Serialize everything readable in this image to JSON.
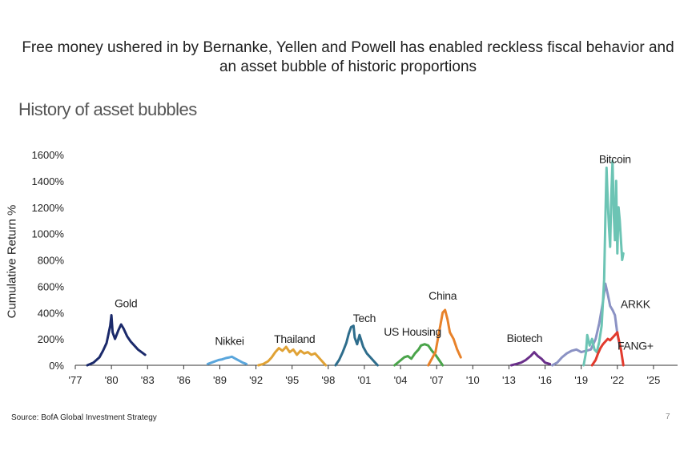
{
  "headline": "Free money ushered in by Bernanke, Yellen and Powell has enabled reckless fiscal behavior and an asset bubble of historic proportions",
  "footer": {
    "source": "Source: BofA Global Investment Strategy",
    "page": "7"
  },
  "chart_data": {
    "type": "line",
    "title": "History of asset bubbles",
    "xlabel": "",
    "ylabel": "Cumulative Return %",
    "xlim": [
      1977,
      2027
    ],
    "ylim": [
      0,
      1600
    ],
    "x_ticks": [
      1977,
      1980,
      1983,
      1986,
      1989,
      1992,
      1995,
      1998,
      2001,
      2004,
      2007,
      2010,
      2013,
      2016,
      2019,
      2022,
      2025
    ],
    "x_tick_labels": [
      "'77",
      "'80",
      "'83",
      "'86",
      "'89",
      "'92",
      "'95",
      "'98",
      "'01",
      "'04",
      "'07",
      "'10",
      "'13",
      "'16",
      "'19",
      "'22",
      "'25"
    ],
    "y_ticks": [
      0,
      200,
      400,
      600,
      800,
      1000,
      1200,
      1400,
      1600
    ],
    "y_tick_labels": [
      "0%",
      "200%",
      "400%",
      "600%",
      "800%",
      "1000%",
      "1200%",
      "1400%",
      "1600%"
    ],
    "series": [
      {
        "name": "Gold",
        "color": "#1b2a6b",
        "label_at": [
          1981.2,
          440
        ],
        "x": [
          1978.0,
          1978.5,
          1979.0,
          1979.3,
          1979.6,
          1979.9,
          1980.0,
          1980.1,
          1980.3,
          1980.6,
          1980.8,
          1981.0,
          1981.3,
          1981.6,
          1981.9,
          1982.2,
          1982.5,
          1982.8
        ],
        "y": [
          0,
          20,
          60,
          110,
          170,
          300,
          380,
          250,
          200,
          270,
          310,
          280,
          220,
          180,
          150,
          120,
          100,
          80
        ]
      },
      {
        "name": "Nikkei",
        "color": "#5aa6dc",
        "label_at": [
          1989.8,
          155
        ],
        "x": [
          1988.0,
          1988.3,
          1988.6,
          1988.9,
          1989.2,
          1989.5,
          1989.8,
          1990.0,
          1990.3,
          1990.6,
          1990.9,
          1991.2
        ],
        "y": [
          10,
          20,
          30,
          40,
          45,
          55,
          60,
          65,
          50,
          35,
          20,
          10
        ]
      },
      {
        "name": "Thailand",
        "color": "#e0a235",
        "label_at": [
          1995.2,
          170
        ],
        "x": [
          1992.2,
          1992.6,
          1993.0,
          1993.3,
          1993.6,
          1993.9,
          1994.2,
          1994.5,
          1994.8,
          1995.1,
          1995.4,
          1995.7,
          1996.0,
          1996.3,
          1996.6,
          1996.9,
          1997.2,
          1997.5,
          1997.8
        ],
        "y": [
          0,
          10,
          30,
          60,
          100,
          130,
          110,
          140,
          100,
          120,
          80,
          110,
          90,
          100,
          80,
          90,
          60,
          30,
          0
        ]
      },
      {
        "name": "Tech",
        "color": "#2e6d8c",
        "label_at": [
          2001.0,
          330
        ],
        "x": [
          1998.6,
          1998.9,
          1999.2,
          1999.5,
          1999.7,
          1999.9,
          2000.1,
          2000.2,
          2000.4,
          2000.6,
          2000.9,
          2001.2,
          2001.5,
          2001.8,
          2002.1
        ],
        "y": [
          0,
          40,
          100,
          170,
          240,
          290,
          300,
          210,
          160,
          230,
          140,
          90,
          60,
          30,
          0
        ]
      },
      {
        "name": "US Housing",
        "color": "#4aa44a",
        "label_at": [
          2005.0,
          225
        ],
        "x": [
          2003.5,
          2003.9,
          2004.3,
          2004.6,
          2004.9,
          2005.2,
          2005.5,
          2005.7,
          2006.0,
          2006.3,
          2006.6,
          2006.9,
          2007.2,
          2007.5
        ],
        "y": [
          0,
          30,
          60,
          70,
          50,
          90,
          120,
          150,
          160,
          150,
          110,
          80,
          40,
          0
        ]
      },
      {
        "name": "China",
        "color": "#e8822a",
        "label_at": [
          2007.5,
          500
        ],
        "x": [
          2006.3,
          2006.6,
          2006.9,
          2007.1,
          2007.3,
          2007.5,
          2007.7,
          2007.9,
          2008.1,
          2008.4,
          2008.7,
          2009.0
        ],
        "y": [
          0,
          50,
          100,
          200,
          300,
          400,
          420,
          350,
          250,
          200,
          120,
          60
        ]
      },
      {
        "name": "Biotech",
        "color": "#6a2f8a",
        "label_at": [
          2014.3,
          175
        ],
        "x": [
          2013.2,
          2013.6,
          2014.0,
          2014.4,
          2014.8,
          2015.1,
          2015.4,
          2015.7,
          2016.0,
          2016.4
        ],
        "y": [
          0,
          10,
          20,
          40,
          70,
          100,
          70,
          50,
          20,
          10
        ]
      },
      {
        "name": "ARKK",
        "color": "#8b92c4",
        "label_at": [
          2023.5,
          435
        ],
        "x": [
          2016.6,
          2017.0,
          2017.4,
          2017.8,
          2018.2,
          2018.6,
          2019.0,
          2019.4,
          2019.8,
          2020.2,
          2020.5,
          2020.8,
          2021.0,
          2021.2,
          2021.4,
          2021.6,
          2021.8,
          2022.0,
          2022.2
        ],
        "y": [
          0,
          20,
          60,
          90,
          110,
          120,
          100,
          110,
          120,
          200,
          320,
          480,
          620,
          540,
          450,
          420,
          380,
          240,
          150
        ]
      },
      {
        "name": "Bitcoin",
        "color": "#6cc4b4",
        "label_at": [
          2021.8,
          1535
        ],
        "x": [
          2019.2,
          2019.4,
          2019.5,
          2019.7,
          2019.9,
          2020.1,
          2020.3,
          2020.5,
          2020.7,
          2020.9,
          2021.0,
          2021.1,
          2021.2,
          2021.3,
          2021.4,
          2021.5,
          2021.6,
          2021.7,
          2021.8,
          2021.9,
          2022.0,
          2022.1,
          2022.2,
          2022.3,
          2022.4,
          2022.5
        ],
        "y": [
          0,
          100,
          230,
          150,
          200,
          120,
          100,
          180,
          300,
          650,
          1100,
          1500,
          1250,
          1050,
          900,
          1300,
          1550,
          1150,
          950,
          1400,
          850,
          1200,
          1100,
          950,
          800,
          850
        ]
      },
      {
        "name": "FANG+",
        "color": "#e23b2e",
        "label_at": [
          2023.5,
          120
        ],
        "x": [
          2019.9,
          2020.2,
          2020.4,
          2020.6,
          2020.8,
          2021.0,
          2021.2,
          2021.4,
          2021.6,
          2021.8,
          2022.0,
          2022.1,
          2022.2,
          2022.3,
          2022.4,
          2022.5
        ],
        "y": [
          0,
          40,
          90,
          130,
          160,
          180,
          200,
          190,
          210,
          230,
          250,
          200,
          160,
          120,
          60,
          0
        ]
      }
    ]
  }
}
